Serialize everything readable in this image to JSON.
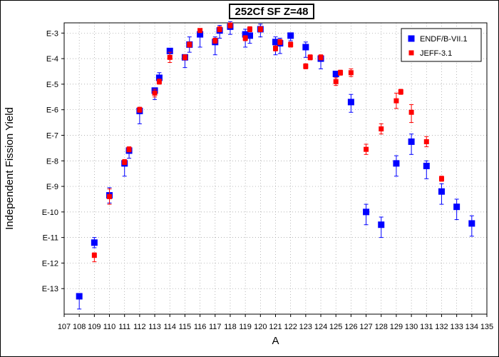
{
  "chart_data": {
    "type": "scatter",
    "title": "252Cf SF Z=48",
    "xlabel": "A",
    "ylabel": "Independent Fission Yield",
    "x_range": [
      107,
      135
    ],
    "y_exponent_range": [
      -14,
      -2.6
    ],
    "y_scale": "log",
    "x_tick_labels": [
      "107",
      "108",
      "109",
      "110",
      "111",
      "112",
      "113",
      "114",
      "115",
      "116",
      "117",
      "118",
      "119",
      "120",
      "121",
      "122",
      "123",
      "124",
      "125",
      "126",
      "127",
      "128",
      "129",
      "130",
      "131",
      "132",
      "133",
      "134",
      "135"
    ],
    "y_tick_labels": [
      {
        "label": "E-3",
        "exp": -3
      },
      {
        "label": "E-4",
        "exp": -4
      },
      {
        "label": "E-5",
        "exp": -5
      },
      {
        "label": "E-6",
        "exp": -6
      },
      {
        "label": "E-7",
        "exp": -7
      },
      {
        "label": "E-8",
        "exp": -8
      },
      {
        "label": "E-9",
        "exp": -9
      },
      {
        "label": "E-10",
        "exp": -10
      },
      {
        "label": "E-11",
        "exp": -11
      },
      {
        "label": "E-12",
        "exp": -12
      },
      {
        "label": "E-13",
        "exp": -13
      }
    ],
    "grid": true,
    "legend_position": "top-right",
    "series": [
      {
        "name": "ENDF/B-VII.1",
        "color": "#0000ff",
        "marker": "square",
        "points": [
          {
            "A": 108,
            "log_y": -13.3,
            "err_lo": 0.5,
            "err_hi": 0.0
          },
          {
            "A": 109,
            "log_y": -11.2,
            "err_lo": 0.2,
            "err_hi": 0.2
          },
          {
            "A": 110,
            "log_y": -9.35,
            "err_lo": 0.3,
            "err_hi": 0.3
          },
          {
            "A": 111,
            "log_y": -8.1,
            "err_lo": 0.5,
            "err_hi": 0.1
          },
          {
            "A": 111.3,
            "log_y": -7.6,
            "err_lo": 0.3,
            "err_hi": 0.1
          },
          {
            "A": 112,
            "log_y": -6.05,
            "err_lo": 0.5,
            "err_hi": 0.05
          },
          {
            "A": 113,
            "log_y": -5.25,
            "err_lo": 0.35,
            "err_hi": 0.1
          },
          {
            "A": 113.3,
            "log_y": -4.75,
            "err_lo": 0.2,
            "err_hi": 0.2
          },
          {
            "A": 114,
            "log_y": -3.7,
            "err_lo": 0.3,
            "err_hi": 0.1
          },
          {
            "A": 115,
            "log_y": -3.95,
            "err_lo": 0.4,
            "err_hi": 0.1
          },
          {
            "A": 115.3,
            "log_y": -3.45,
            "err_lo": 0.3,
            "err_hi": 0.3
          },
          {
            "A": 116,
            "log_y": -3.05,
            "err_lo": 0.5,
            "err_hi": 0.2
          },
          {
            "A": 117,
            "log_y": -3.35,
            "err_lo": 0.5,
            "err_hi": 0.2
          },
          {
            "A": 117.3,
            "log_y": -2.9,
            "err_lo": 0.3,
            "err_hi": 0.2
          },
          {
            "A": 118,
            "log_y": -2.75,
            "err_lo": 0.3,
            "err_hi": 0.2
          },
          {
            "A": 119,
            "log_y": -3.05,
            "err_lo": 0.5,
            "err_hi": 0.2
          },
          {
            "A": 119.3,
            "log_y": -3.1,
            "err_lo": 0.3,
            "err_hi": 0.1
          },
          {
            "A": 120,
            "log_y": -2.85,
            "err_lo": 0.3,
            "err_hi": 0.2
          },
          {
            "A": 121,
            "log_y": -3.35,
            "err_lo": 0.5,
            "err_hi": 0.2
          },
          {
            "A": 121.3,
            "log_y": -3.4,
            "err_lo": 0.4,
            "err_hi": 0.2
          },
          {
            "A": 122,
            "log_y": -3.1,
            "err_lo": 0.2,
            "err_hi": 0.1
          },
          {
            "A": 123,
            "log_y": -3.55,
            "err_lo": 0.4,
            "err_hi": 0.2
          },
          {
            "A": 124,
            "log_y": -4.0,
            "err_lo": 0.4,
            "err_hi": 0.1
          },
          {
            "A": 125,
            "log_y": -4.6,
            "err_lo": 0.3,
            "err_hi": 0.1
          },
          {
            "A": 126,
            "log_y": -5.7,
            "err_lo": 0.4,
            "err_hi": 0.3
          },
          {
            "A": 127,
            "log_y": -10.0,
            "err_lo": 0.5,
            "err_hi": 0.3
          },
          {
            "A": 128,
            "log_y": -10.5,
            "err_lo": 0.5,
            "err_hi": 0.3
          },
          {
            "A": 129,
            "log_y": -8.1,
            "err_lo": 0.5,
            "err_hi": 0.3
          },
          {
            "A": 130,
            "log_y": -7.25,
            "err_lo": 0.5,
            "err_hi": 0.3
          },
          {
            "A": 131,
            "log_y": -8.2,
            "err_lo": 0.5,
            "err_hi": 0.2
          },
          {
            "A": 132,
            "log_y": -9.2,
            "err_lo": 0.5,
            "err_hi": 0.3
          },
          {
            "A": 133,
            "log_y": -9.8,
            "err_lo": 0.5,
            "err_hi": 0.3
          },
          {
            "A": 134,
            "log_y": -10.45,
            "err_lo": 0.5,
            "err_hi": 0.3
          }
        ]
      },
      {
        "name": "JEFF-3.1",
        "color": "#ff0000",
        "marker": "square",
        "points": [
          {
            "A": 109,
            "log_y": -11.7,
            "err_lo": 0.25,
            "err_hi": 0.1
          },
          {
            "A": 110,
            "log_y": -9.4,
            "err_lo": 0.3,
            "err_hi": 0.3
          },
          {
            "A": 111,
            "log_y": -8.05,
            "err_lo": 0.1,
            "err_hi": 0.1
          },
          {
            "A": 111.3,
            "log_y": -7.55,
            "err_lo": 0.1,
            "err_hi": 0.1
          },
          {
            "A": 112,
            "log_y": -6.0,
            "err_lo": 0.1,
            "err_hi": 0.1
          },
          {
            "A": 113,
            "log_y": -5.35,
            "err_lo": 0.15,
            "err_hi": 0.15
          },
          {
            "A": 113.3,
            "log_y": -4.9,
            "err_lo": 0.1,
            "err_hi": 0.1
          },
          {
            "A": 114,
            "log_y": -3.95,
            "err_lo": 0.2,
            "err_hi": 0.2
          },
          {
            "A": 115,
            "log_y": -3.95,
            "err_lo": 0.1,
            "err_hi": 0.1
          },
          {
            "A": 115.3,
            "log_y": -3.45,
            "err_lo": 0.1,
            "err_hi": 0.1
          },
          {
            "A": 116,
            "log_y": -2.9,
            "err_lo": 0.05,
            "err_hi": 0.05
          },
          {
            "A": 117,
            "log_y": -3.3,
            "err_lo": 0.1,
            "err_hi": 0.1
          },
          {
            "A": 117.3,
            "log_y": -2.85,
            "err_lo": 0.1,
            "err_hi": 0.1
          },
          {
            "A": 118,
            "log_y": -2.7,
            "err_lo": 0.1,
            "err_hi": 0.1
          },
          {
            "A": 119,
            "log_y": -3.2,
            "err_lo": 0.1,
            "err_hi": 0.1
          },
          {
            "A": 119.3,
            "log_y": -2.85,
            "err_lo": 0.1,
            "err_hi": 0.1
          },
          {
            "A": 120,
            "log_y": -2.85,
            "err_lo": 0.1,
            "err_hi": 0.1
          },
          {
            "A": 121,
            "log_y": -3.6,
            "err_lo": 0.1,
            "err_hi": 0.1
          },
          {
            "A": 121.3,
            "log_y": -3.35,
            "err_lo": 0.1,
            "err_hi": 0.1
          },
          {
            "A": 122,
            "log_y": -3.45,
            "err_lo": 0.1,
            "err_hi": 0.1
          },
          {
            "A": 123,
            "log_y": -4.3,
            "err_lo": 0.1,
            "err_hi": 0.1
          },
          {
            "A": 123.3,
            "log_y": -3.95,
            "err_lo": 0.1,
            "err_hi": 0.1
          },
          {
            "A": 124,
            "log_y": -3.95,
            "err_lo": 0.1,
            "err_hi": 0.1
          },
          {
            "A": 125,
            "log_y": -4.9,
            "err_lo": 0.15,
            "err_hi": 0.15
          },
          {
            "A": 125.3,
            "log_y": -4.55,
            "err_lo": 0.1,
            "err_hi": 0.1
          },
          {
            "A": 126,
            "log_y": -4.55,
            "err_lo": 0.15,
            "err_hi": 0.15
          },
          {
            "A": 127,
            "log_y": -7.55,
            "err_lo": 0.2,
            "err_hi": 0.2
          },
          {
            "A": 128,
            "log_y": -6.75,
            "err_lo": 0.2,
            "err_hi": 0.2
          },
          {
            "A": 129,
            "log_y": -5.65,
            "err_lo": 0.3,
            "err_hi": 0.3
          },
          {
            "A": 129.3,
            "log_y": -5.3,
            "err_lo": 0.1,
            "err_hi": 0.1
          },
          {
            "A": 130,
            "log_y": -6.1,
            "err_lo": 0.4,
            "err_hi": 0.3
          },
          {
            "A": 131,
            "log_y": -7.25,
            "err_lo": 0.2,
            "err_hi": 0.2
          },
          {
            "A": 132,
            "log_y": -8.7,
            "err_lo": 0.1,
            "err_hi": 0.1
          }
        ]
      }
    ]
  }
}
